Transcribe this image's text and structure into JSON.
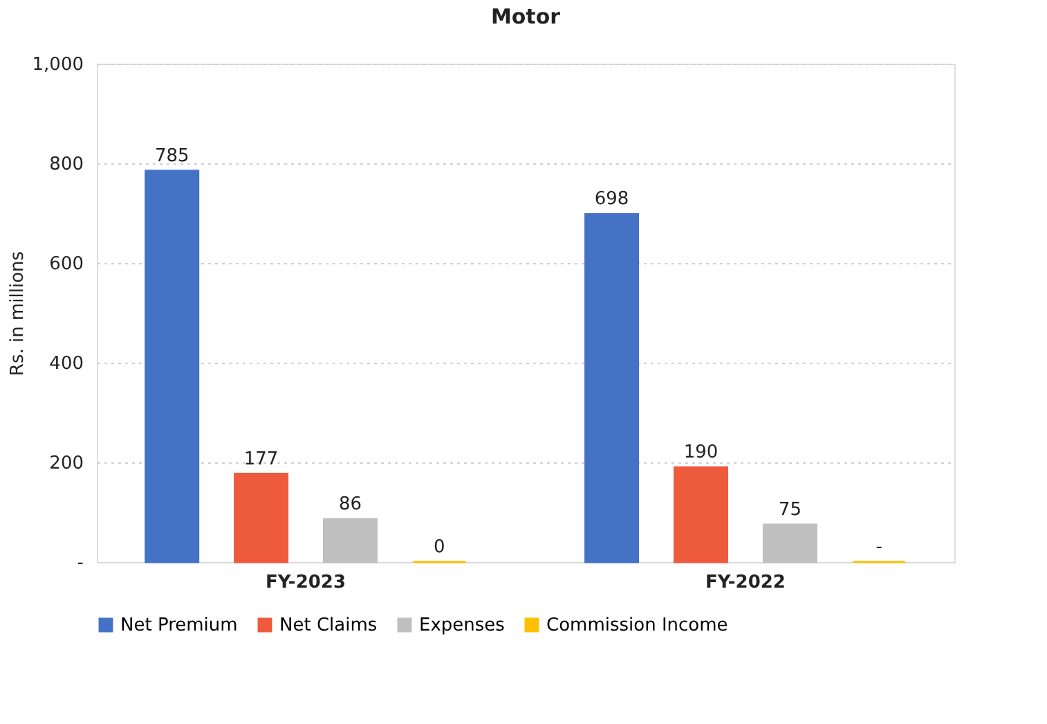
{
  "chart_data": {
    "type": "bar",
    "title": "Motor",
    "ylabel": "Rs. in millions",
    "categories": [
      "FY-2023",
      "FY-2022"
    ],
    "series": [
      {
        "name": "Net Premium",
        "color": "#4472c4",
        "values": [
          785,
          698
        ],
        "value_labels": [
          "785",
          "698"
        ]
      },
      {
        "name": "Net Claims",
        "color": "#ed5b3c",
        "values": [
          177,
          190
        ],
        "value_labels": [
          "177",
          "190"
        ]
      },
      {
        "name": "Expenses",
        "color": "#bfbfbf",
        "values": [
          86,
          75
        ],
        "value_labels": [
          "86",
          "75"
        ]
      },
      {
        "name": "Commission Income",
        "color": "#ffc000",
        "values": [
          0,
          0
        ],
        "value_labels": [
          "0",
          "-"
        ]
      }
    ],
    "ylim": [
      0,
      1000
    ],
    "yticks": [
      {
        "value": 0,
        "label": "-"
      },
      200,
      400,
      600,
      800,
      {
        "value": 1000,
        "label": "1,000"
      }
    ],
    "grid": "y",
    "legend": "bottom"
  }
}
